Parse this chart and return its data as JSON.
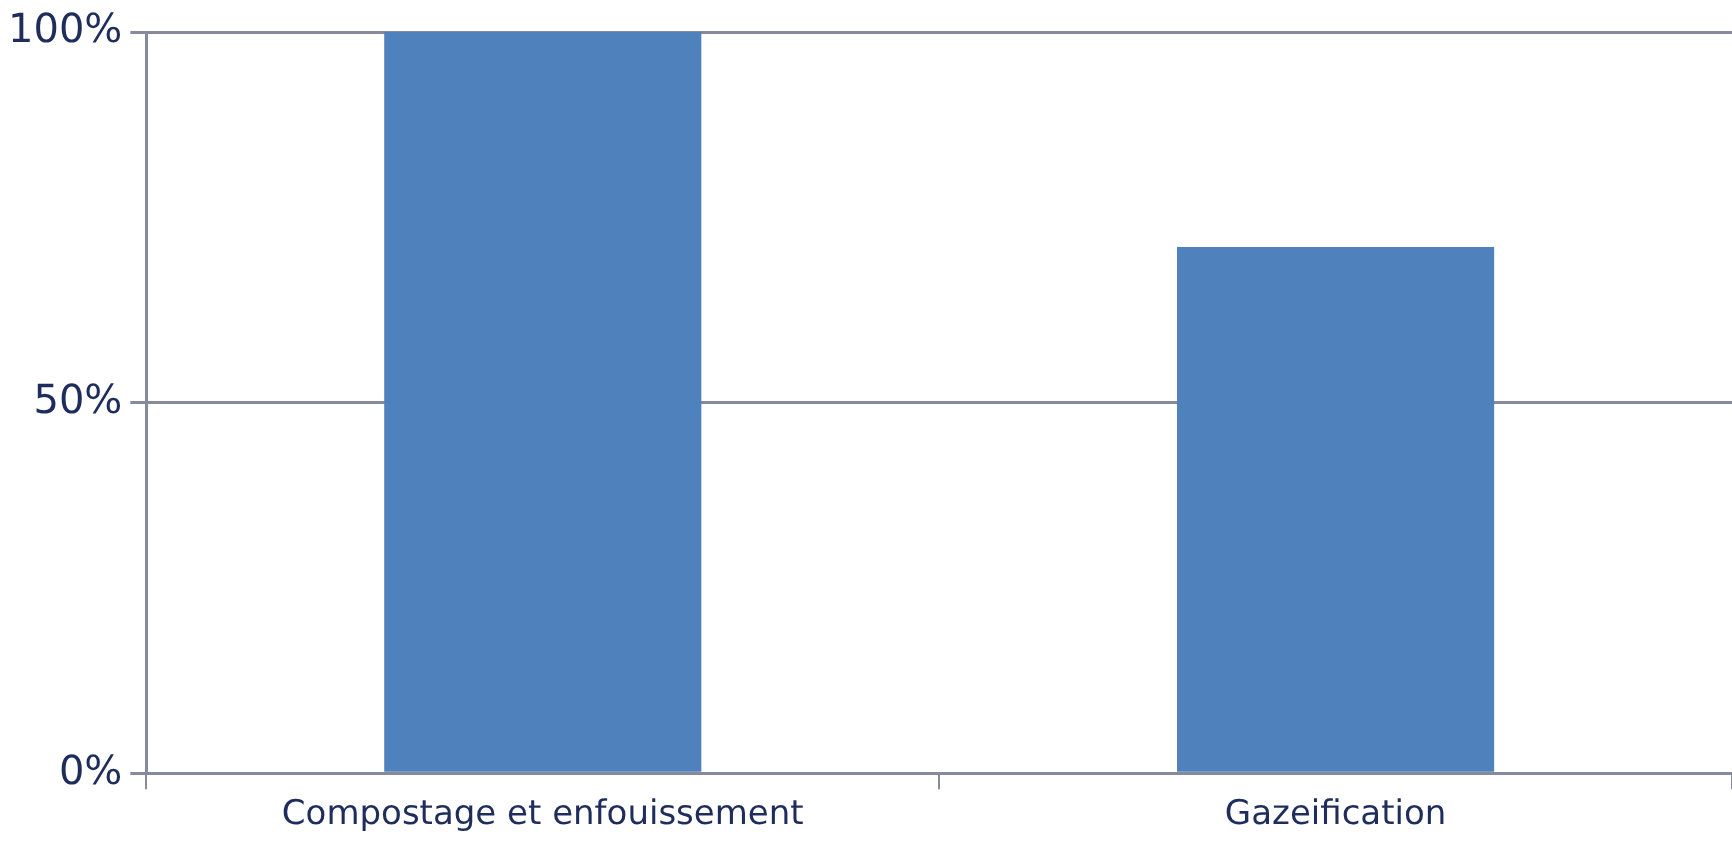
{
  "chart_data": {
    "type": "bar",
    "categories": [
      "Compostage et enfouissement",
      "Gazeification"
    ],
    "values": [
      100,
      71
    ],
    "color": "#4f81bd",
    "ylim": [
      0,
      100
    ],
    "yticks": [
      {
        "value": 0,
        "label": "0%"
      },
      {
        "value": 50,
        "label": "50%"
      },
      {
        "value": 100,
        "label": "100%"
      }
    ],
    "grid": "y"
  }
}
